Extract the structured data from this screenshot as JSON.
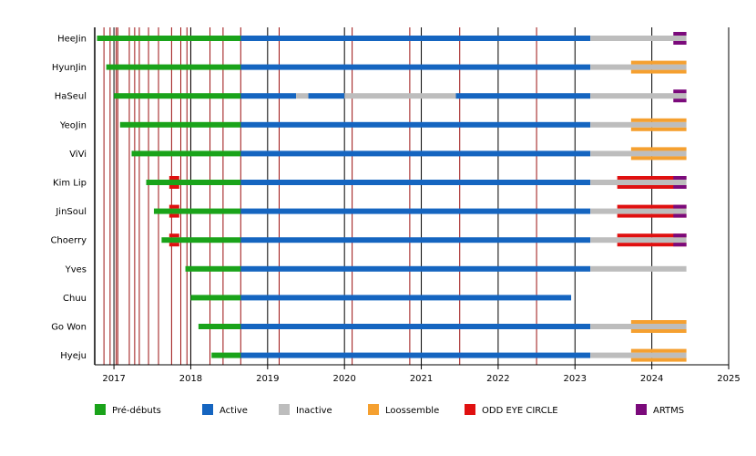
{
  "chart_data": {
    "type": "timeline",
    "title": "",
    "x_range": [
      2016.75,
      2025.0
    ],
    "x_ticks": [
      "2017",
      "2018",
      "2019",
      "2020",
      "2021",
      "2022",
      "2023",
      "2024",
      "2025"
    ],
    "grid": {
      "year_lines": true,
      "release_lines": true
    },
    "release_lines": [
      2016.75,
      2016.87,
      2016.95,
      2017.03,
      2017.05,
      2017.2,
      2017.27,
      2017.33,
      2017.45,
      2017.58,
      2017.75,
      2017.87,
      2017.95,
      2018.0,
      2018.25,
      2018.42,
      2018.65,
      2019.15,
      2020.1,
      2020.85,
      2021.5,
      2022.5
    ],
    "members": [
      "HeeJin",
      "HyunJin",
      "HaSeul",
      "YeoJin",
      "ViVi",
      "Kim Lip",
      "JinSoul",
      "Choerry",
      "Yves",
      "Chuu",
      "Go Won",
      "Hyeju"
    ],
    "legend": [
      {
        "key": "predebut",
        "label": "Pré-débuts",
        "color": "#1aa31a"
      },
      {
        "key": "active",
        "label": "Active",
        "color": "#1565c0"
      },
      {
        "key": "inactive",
        "label": "Inactive",
        "color": "#bdbdbd"
      },
      {
        "key": "loossemble",
        "label": "Loossemble",
        "color": "#f5a030"
      },
      {
        "key": "odd_eye_circle",
        "label": "ODD EYE CIRCLE",
        "color": "#e01010"
      },
      {
        "key": "artms",
        "label": "ARTMS",
        "color": "#7b0a7b"
      }
    ],
    "segments": [
      {
        "member": "HeeJin",
        "status": "predebut",
        "start": 2016.78,
        "end": 2018.65
      },
      {
        "member": "HeeJin",
        "status": "active",
        "start": 2018.65,
        "end": 2023.2
      },
      {
        "member": "HeeJin",
        "status": "inactive",
        "start": 2023.2,
        "end": 2024.45
      },
      {
        "member": "HeeJin",
        "status": "artms",
        "start": 2024.28,
        "end": 2024.45
      },
      {
        "member": "HyunJin",
        "status": "predebut",
        "start": 2016.9,
        "end": 2018.65
      },
      {
        "member": "HyunJin",
        "status": "active",
        "start": 2018.65,
        "end": 2023.2
      },
      {
        "member": "HyunJin",
        "status": "inactive",
        "start": 2023.2,
        "end": 2024.45
      },
      {
        "member": "HyunJin",
        "status": "loossemble",
        "start": 2023.73,
        "end": 2024.45
      },
      {
        "member": "HaSeul",
        "status": "predebut",
        "start": 2017.0,
        "end": 2018.65
      },
      {
        "member": "HaSeul",
        "status": "active",
        "start": 2018.65,
        "end": 2019.37
      },
      {
        "member": "HaSeul",
        "status": "inactive",
        "start": 2019.37,
        "end": 2019.53
      },
      {
        "member": "HaSeul",
        "status": "active",
        "start": 2019.53,
        "end": 2020.0
      },
      {
        "member": "HaSeul",
        "status": "inactive",
        "start": 2020.0,
        "end": 2021.45
      },
      {
        "member": "HaSeul",
        "status": "active",
        "start": 2021.45,
        "end": 2023.2
      },
      {
        "member": "HaSeul",
        "status": "inactive",
        "start": 2023.2,
        "end": 2024.45
      },
      {
        "member": "HaSeul",
        "status": "artms",
        "start": 2024.28,
        "end": 2024.45
      },
      {
        "member": "YeoJin",
        "status": "predebut",
        "start": 2017.08,
        "end": 2018.65
      },
      {
        "member": "YeoJin",
        "status": "active",
        "start": 2018.65,
        "end": 2023.2
      },
      {
        "member": "YeoJin",
        "status": "inactive",
        "start": 2023.2,
        "end": 2024.45
      },
      {
        "member": "YeoJin",
        "status": "loossemble",
        "start": 2023.73,
        "end": 2024.45
      },
      {
        "member": "ViVi",
        "status": "predebut",
        "start": 2017.23,
        "end": 2018.65
      },
      {
        "member": "ViVi",
        "status": "active",
        "start": 2018.65,
        "end": 2023.2
      },
      {
        "member": "ViVi",
        "status": "inactive",
        "start": 2023.2,
        "end": 2024.45
      },
      {
        "member": "ViVi",
        "status": "loossemble",
        "start": 2023.73,
        "end": 2024.45
      },
      {
        "member": "Kim Lip",
        "status": "predebut",
        "start": 2017.42,
        "end": 2018.65
      },
      {
        "member": "Kim Lip",
        "status": "odd_eye_circle",
        "start": 2017.72,
        "end": 2017.85
      },
      {
        "member": "Kim Lip",
        "status": "active",
        "start": 2018.65,
        "end": 2023.2
      },
      {
        "member": "Kim Lip",
        "status": "inactive",
        "start": 2023.2,
        "end": 2024.45
      },
      {
        "member": "Kim Lip",
        "status": "odd_eye_circle",
        "start": 2023.55,
        "end": 2024.45
      },
      {
        "member": "Kim Lip",
        "status": "artms",
        "start": 2024.28,
        "end": 2024.45
      },
      {
        "member": "JinSoul",
        "status": "predebut",
        "start": 2017.52,
        "end": 2018.65
      },
      {
        "member": "JinSoul",
        "status": "odd_eye_circle",
        "start": 2017.72,
        "end": 2017.85
      },
      {
        "member": "JinSoul",
        "status": "active",
        "start": 2018.65,
        "end": 2023.2
      },
      {
        "member": "JinSoul",
        "status": "inactive",
        "start": 2023.2,
        "end": 2024.45
      },
      {
        "member": "JinSoul",
        "status": "odd_eye_circle",
        "start": 2023.55,
        "end": 2024.45
      },
      {
        "member": "JinSoul",
        "status": "artms",
        "start": 2024.28,
        "end": 2024.45
      },
      {
        "member": "Choerry",
        "status": "predebut",
        "start": 2017.62,
        "end": 2018.65
      },
      {
        "member": "Choerry",
        "status": "odd_eye_circle",
        "start": 2017.72,
        "end": 2017.85
      },
      {
        "member": "Choerry",
        "status": "active",
        "start": 2018.65,
        "end": 2023.2
      },
      {
        "member": "Choerry",
        "status": "inactive",
        "start": 2023.2,
        "end": 2024.45
      },
      {
        "member": "Choerry",
        "status": "odd_eye_circle",
        "start": 2023.55,
        "end": 2024.45
      },
      {
        "member": "Choerry",
        "status": "artms",
        "start": 2024.28,
        "end": 2024.45
      },
      {
        "member": "Yves",
        "status": "predebut",
        "start": 2017.93,
        "end": 2018.65
      },
      {
        "member": "Yves",
        "status": "active",
        "start": 2018.65,
        "end": 2023.2
      },
      {
        "member": "Yves",
        "status": "inactive",
        "start": 2023.2,
        "end": 2024.45
      },
      {
        "member": "Chuu",
        "status": "predebut",
        "start": 2018.0,
        "end": 2018.65
      },
      {
        "member": "Chuu",
        "status": "active",
        "start": 2018.65,
        "end": 2022.95
      },
      {
        "member": "Go Won",
        "status": "predebut",
        "start": 2018.1,
        "end": 2018.65
      },
      {
        "member": "Go Won",
        "status": "active",
        "start": 2018.65,
        "end": 2023.2
      },
      {
        "member": "Go Won",
        "status": "inactive",
        "start": 2023.2,
        "end": 2024.45
      },
      {
        "member": "Go Won",
        "status": "loossemble",
        "start": 2023.73,
        "end": 2024.45
      },
      {
        "member": "Hyeju",
        "status": "predebut",
        "start": 2018.27,
        "end": 2018.65
      },
      {
        "member": "Hyeju",
        "status": "active",
        "start": 2018.65,
        "end": 2023.2
      },
      {
        "member": "Hyeju",
        "status": "inactive",
        "start": 2023.2,
        "end": 2024.45
      },
      {
        "member": "Hyeju",
        "status": "loossemble",
        "start": 2023.73,
        "end": 2024.45
      }
    ]
  }
}
